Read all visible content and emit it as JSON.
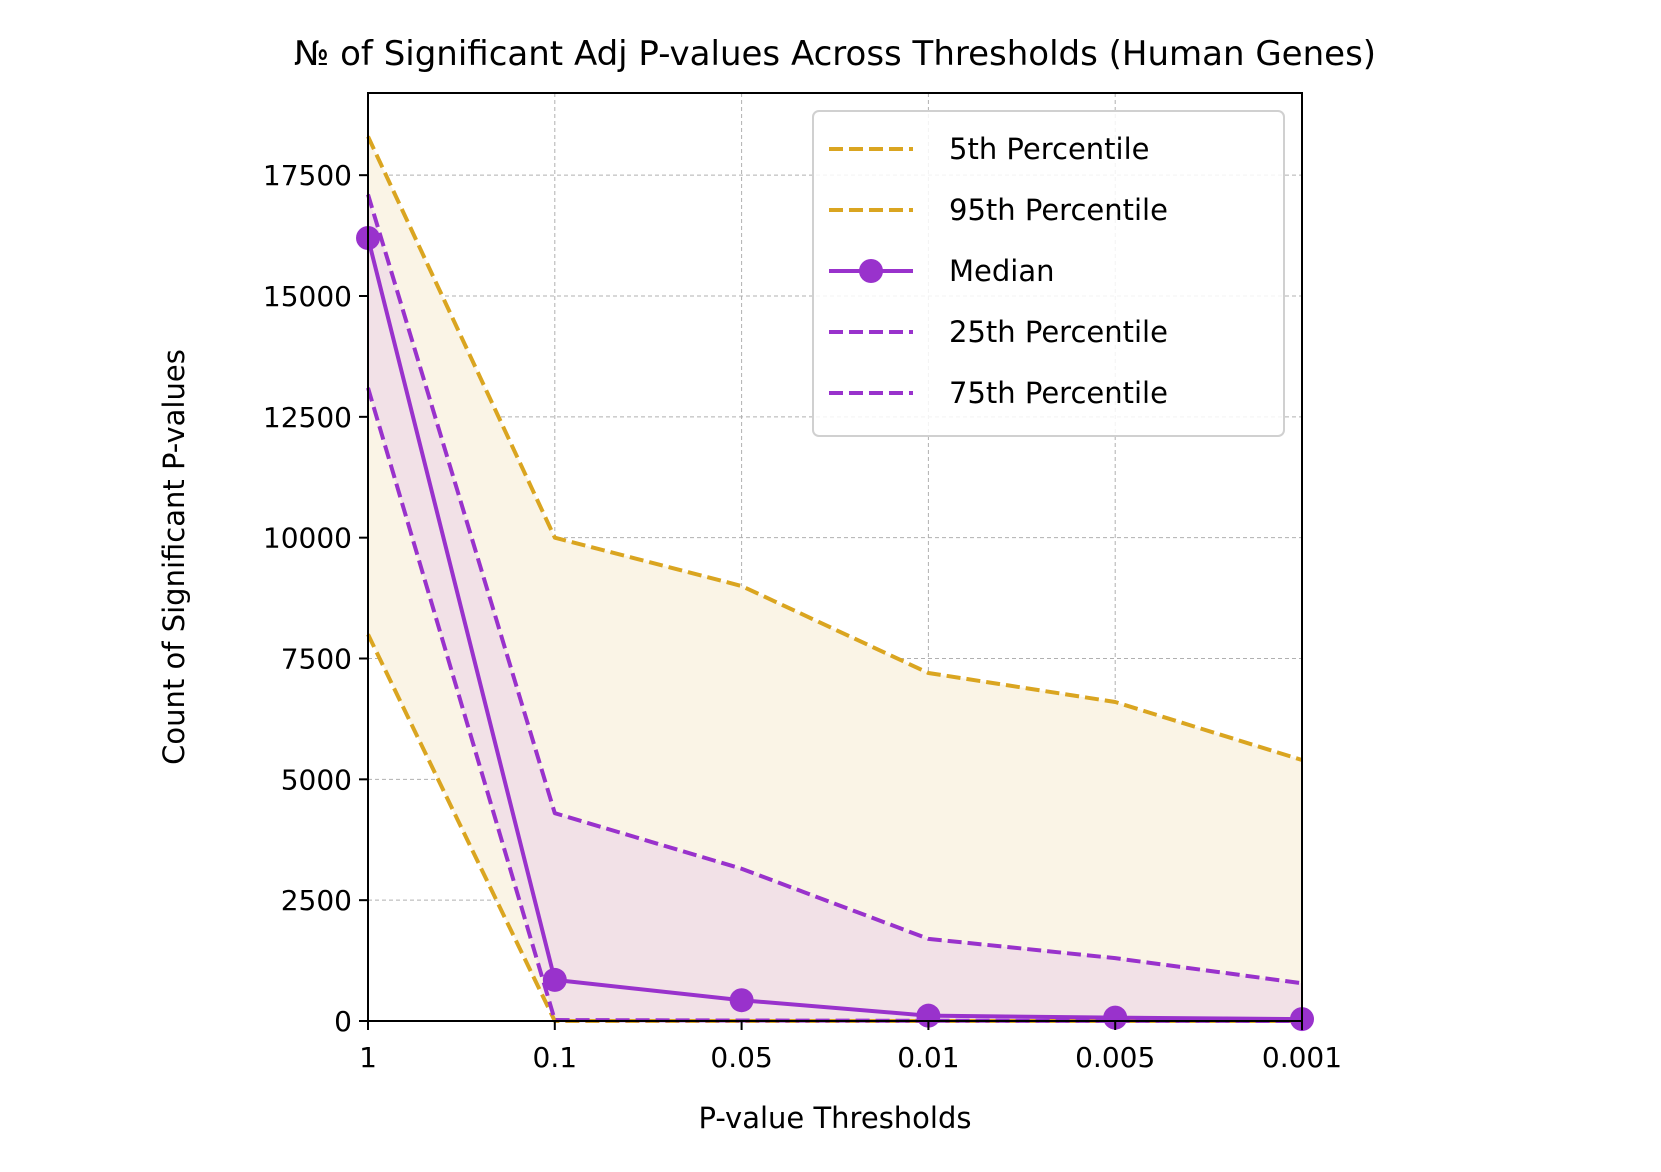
{
  "chart_data": {
    "type": "line",
    "title": "№ of Significant Adj P-values Across Thresholds (Human Genes)",
    "xlabel": "P-value Thresholds",
    "ylabel": "Count of Significant P-values",
    "categories": [
      "1",
      "0.1",
      "0.05",
      "0.01",
      "0.005",
      "0.001"
    ],
    "ylim": [
      0,
      19200
    ],
    "yticks": [
      0,
      2500,
      5000,
      7500,
      10000,
      12500,
      15000,
      17500
    ],
    "grid": true,
    "legend_position": "top-right",
    "colors": {
      "gold": "#DAA520",
      "purple": "#9932CC",
      "gold_fill": "#FAF4E6",
      "purple_fill": "#F2E1E7"
    },
    "series": [
      {
        "name": "5th Percentile",
        "style": "dashed",
        "color": "#DAA520",
        "values": [
          8000,
          0,
          0,
          0,
          0,
          0
        ]
      },
      {
        "name": "95th Percentile",
        "style": "dashed",
        "color": "#DAA520",
        "values": [
          18300,
          10000,
          9000,
          7200,
          6600,
          5400
        ]
      },
      {
        "name": "Median",
        "style": "solid-marker",
        "color": "#9932CC",
        "values": [
          16200,
          850,
          430,
          110,
          70,
          40
        ]
      },
      {
        "name": "25th Percentile",
        "style": "dashed",
        "color": "#9932CC",
        "values": [
          13100,
          20,
          10,
          5,
          2,
          1
        ]
      },
      {
        "name": "75th Percentile",
        "style": "dashed",
        "color": "#9932CC",
        "values": [
          17100,
          4300,
          3150,
          1700,
          1300,
          780
        ]
      }
    ]
  }
}
